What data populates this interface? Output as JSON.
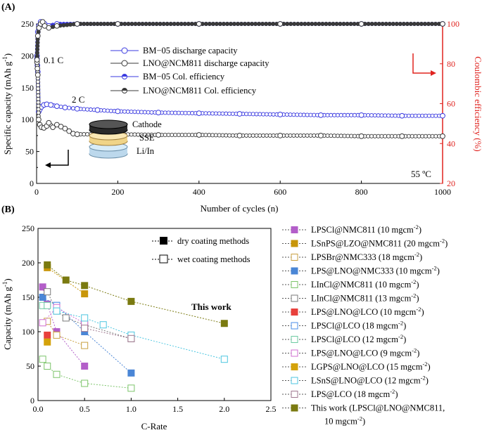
{
  "chart_data": [
    {
      "type": "scatter",
      "panel_label": "(A)",
      "xlabel": "Number of cycles (n)",
      "ylabel": "Specific capacity (mAh g",
      "ylabel_sup": "-1",
      "ylabel_end": ")",
      "y2label": "Coulombic efficiency  (%)",
      "xlim": [
        0,
        1000
      ],
      "ylim": [
        0,
        250
      ],
      "y2lim": [
        20,
        100
      ],
      "xticks": [
        0,
        200,
        400,
        600,
        800,
        1000
      ],
      "yticks": [
        0,
        25,
        50,
        75,
        100,
        125,
        150,
        175,
        200,
        225,
        250
      ],
      "ytick_labels": [
        0,
        50,
        100,
        150,
        200,
        250
      ],
      "y2ticks": [
        20,
        40,
        60,
        80,
        100
      ],
      "colors": {
        "bm05": "#3a3ae0",
        "lno": "#3a3a3a",
        "coulombic_axis": "#e0231f"
      },
      "legend": [
        "BM−05 discharge capacity",
        "LNO@NCM811 discharge capacity",
        "BM−05 Col. efficiency",
        "LNO@NCM811 Col. efficiency"
      ],
      "annotations": {
        "rate_low": "0.1 C",
        "rate_high": "2 C",
        "temperature": "55 ºC"
      },
      "cell_stack": [
        "Cathode",
        "SSE",
        "Li/In"
      ],
      "series": [
        {
          "name": "BM−05 discharge capacity",
          "axis": "left",
          "x": [
            1,
            2,
            3,
            5,
            8,
            12,
            18,
            25,
            35,
            50,
            70,
            100,
            150,
            200,
            300,
            400,
            500,
            600,
            700,
            800,
            900,
            1000
          ],
          "y": [
            195,
            185,
            175,
            112,
            116,
            120,
            123,
            124,
            123,
            121,
            119,
            117,
            115,
            113,
            111,
            110,
            109,
            108,
            107,
            107,
            106,
            106
          ]
        },
        {
          "name": "LNO@NCM811 discharge capacity",
          "axis": "left",
          "x": [
            1,
            2,
            3,
            5,
            8,
            12,
            18,
            25,
            30,
            40,
            50,
            60,
            70,
            80,
            90,
            100,
            150,
            200,
            300,
            400,
            500,
            600,
            700,
            800,
            900,
            1000
          ],
          "y": [
            190,
            180,
            170,
            100,
            92,
            88,
            87,
            90,
            95,
            88,
            92,
            89,
            86,
            82,
            78,
            77,
            77,
            77,
            76,
            76,
            75,
            75,
            75,
            74,
            74,
            74
          ]
        },
        {
          "name": "BM−05 Col. efficiency",
          "axis": "right",
          "x": [
            1,
            3,
            6,
            10,
            15,
            20,
            30,
            50,
            100,
            200,
            400,
            600,
            800,
            1000
          ],
          "y": [
            84,
            96,
            99,
            101,
            100,
            100,
            99,
            100,
            100,
            100,
            100,
            100,
            100,
            100
          ]
        },
        {
          "name": "LNO@NCM811 Col. efficiency",
          "axis": "right",
          "x": [
            1,
            3,
            6,
            10,
            15,
            20,
            30,
            50,
            100,
            200,
            400,
            600,
            800,
            1000
          ],
          "y": [
            82,
            94,
            98,
            100,
            101,
            99,
            98,
            99,
            100,
            100,
            100,
            100,
            100,
            100
          ]
        }
      ]
    },
    {
      "type": "scatter",
      "panel_label": "(B)",
      "xlabel": "C-Rate",
      "ylabel": "Capacity (mAh g",
      "ylabel_sup": "-1",
      "ylabel_end": ")",
      "xlim": [
        0,
        2.5
      ],
      "ylim": [
        0,
        250
      ],
      "xticks": [
        0.0,
        0.5,
        1.0,
        1.5,
        2.0,
        2.5
      ],
      "xtick_labels": [
        "0.0",
        "0.5",
        "1.0",
        "1.5",
        "2.0",
        "2.5"
      ],
      "yticks": [
        0,
        50,
        100,
        150,
        200,
        250
      ],
      "marker_key": [
        {
          "label": "dry coating methods",
          "style": "filled"
        },
        {
          "label": "wet coating methods",
          "style": "open"
        }
      ],
      "annotation": "This work",
      "series": [
        {
          "name": "LPSCl@NMC811 (10 mgcm",
          "sup": "-2",
          "tail": ")",
          "color": "#b35ec9",
          "filled": true,
          "x": [
            0.05,
            0.1,
            0.2,
            0.5
          ],
          "y": [
            165,
            140,
            100,
            50
          ]
        },
        {
          "name": "LSnPS@LZO@NMC811 (20 mgcm",
          "sup": "-2",
          "tail": ")",
          "color": "#c8960a",
          "filled": true,
          "x": [
            0.1,
            0.5
          ],
          "y": [
            193,
            155
          ]
        },
        {
          "name": "LPSBr@NMC333 (18 mgcm",
          "sup": "-2",
          "tail": ")",
          "color": "#c8a040",
          "filled": false,
          "x": [
            0.1,
            0.2,
            0.5
          ],
          "y": [
            115,
            95,
            80
          ]
        },
        {
          "name": "LPS@LNO@NMC333 (10 mgcm",
          "sup": "-2",
          "tail": ")",
          "color": "#4a86d6",
          "filled": true,
          "x": [
            0.05,
            0.2,
            0.5,
            1.0
          ],
          "y": [
            150,
            138,
            100,
            40
          ]
        },
        {
          "name": "LInCl@NMC811 (10 mgcm",
          "sup": "-2",
          "tail": ")",
          "color": "#7cc46a",
          "filled": false,
          "x": [
            0.05,
            0.1,
            0.2,
            0.5,
            1.0
          ],
          "y": [
            60,
            50,
            38,
            25,
            18
          ]
        },
        {
          "name": "LInCl@NMC811 (13 mgcm",
          "sup": "-2",
          "tail": ")",
          "color": "#7a7a7a",
          "filled": false,
          "x": [
            0.1,
            0.2,
            0.3,
            0.5,
            1.0
          ],
          "y": [
            158,
            130,
            120,
            110,
            90
          ]
        },
        {
          "name": "LPS@LNO@LCO (10 mgcm",
          "sup": "-2",
          "tail": ")",
          "color": "#e8403c",
          "filled": true,
          "x": [
            0.1
          ],
          "y": [
            95
          ]
        },
        {
          "name": "LPSCl@LCO (18 mgcm",
          "sup": "-2",
          "tail": ")",
          "color": "#4a8ee8",
          "filled": false,
          "x": [
            0.2
          ],
          "y": [
            138
          ]
        },
        {
          "name": "LPSCl@LCO (12 mgcm",
          "sup": "-2",
          "tail": ")",
          "color": "#6ccaa2",
          "filled": false,
          "x": [
            0.05,
            0.1
          ],
          "y": [
            138,
            138
          ]
        },
        {
          "name": "LPS@LNO@LCO (9 mgcm",
          "sup": "-2",
          "tail": ")",
          "color": "#d06cd0",
          "filled": false,
          "x": [
            0.05,
            0.2,
            0.5
          ],
          "y": [
            113,
            135,
            112
          ]
        },
        {
          "name": "LGPS@LNO@LCO (15 mgcm",
          "sup": "-2",
          "tail": ")",
          "color": "#d4a20a",
          "filled": true,
          "x": [
            0.1
          ],
          "y": [
            85
          ]
        },
        {
          "name": "LSnS@LNO@LCO (12 mgcm",
          "sup": "-2",
          "tail": ")",
          "color": "#4cc6e0",
          "filled": false,
          "x": [
            0.2,
            0.5,
            0.7,
            1.0,
            2.0
          ],
          "y": [
            130,
            120,
            110,
            95,
            60
          ]
        },
        {
          "name": "LPS@LCO (18 mgcm",
          "sup": "-2",
          "tail": ")",
          "color": "#a07890",
          "filled": false,
          "x": [
            0.5,
            1.0
          ],
          "y": [
            105,
            90
          ]
        },
        {
          "name": "This work (LPSCl@LNO@NMC811,",
          "line2": "10 mgcm",
          "sup": "-2",
          "tail": ")",
          "color": "#7a7a10",
          "filled": true,
          "x": [
            0.1,
            0.3,
            0.5,
            1.0,
            2.0
          ],
          "y": [
            197,
            175,
            167,
            144,
            112
          ]
        }
      ]
    }
  ]
}
